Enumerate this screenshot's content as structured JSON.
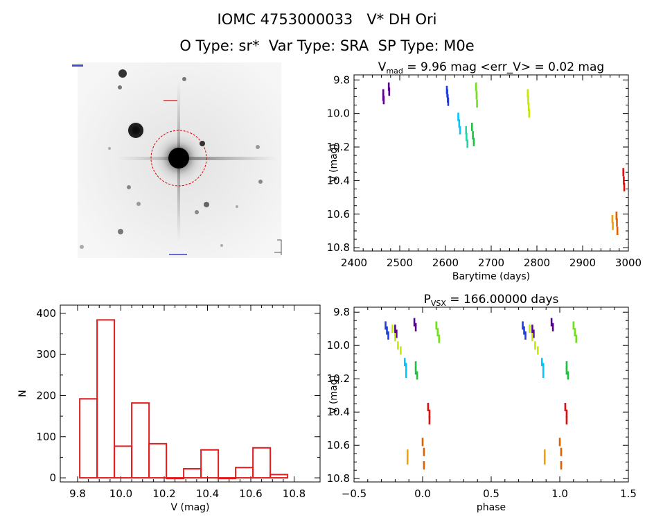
{
  "header": {
    "title_line1": "IOMC 4753000033   V* DH Ori",
    "title_line2": "O Type: sr*  Var Type: SRA  SP Type: M0e"
  },
  "colors": {
    "histogram": "#e41a1c",
    "marker_circle": "#dd0000"
  },
  "chart_data": [
    {
      "type": "scatter",
      "panel": "lightcurve",
      "title_prefix": "V",
      "title_sub": "mad",
      "title_suffix": " = 9.96 mag <err_V> = 0.02 mag",
      "xlabel": "Barytime (days)",
      "ylabel": "V (mag)",
      "xlim": [
        2400,
        3000
      ],
      "ylim": [
        10.82,
        9.77
      ],
      "xticks": [
        2400,
        2500,
        2600,
        2700,
        2800,
        2900,
        3000
      ],
      "yticks": [
        9.8,
        10.0,
        10.2,
        10.4,
        10.6,
        10.8
      ],
      "ytick_labels": [
        "9.8",
        "10.0",
        "10.2",
        "10.4",
        "10.6",
        "10.8"
      ],
      "series": [
        {
          "color": "#5a0090",
          "x": [
            2464,
            2464,
            2465,
            2476,
            2477
          ],
          "y": [
            9.88,
            9.9,
            9.92,
            9.84,
            9.87
          ]
        },
        {
          "color": "#1e3ce0",
          "x": [
            2603,
            2604,
            2605,
            2606
          ],
          "y": [
            9.86,
            9.88,
            9.91,
            9.93
          ]
        },
        {
          "color": "#00c8ff",
          "x": [
            2628,
            2630,
            2632
          ],
          "y": [
            10.02,
            10.06,
            10.1
          ]
        },
        {
          "color": "#20d8a0",
          "x": [
            2645,
            2646,
            2648
          ],
          "y": [
            10.1,
            10.14,
            10.18
          ]
        },
        {
          "color": "#20c040",
          "x": [
            2658,
            2660,
            2662
          ],
          "y": [
            10.08,
            10.13,
            10.17
          ]
        },
        {
          "color": "#70e020",
          "x": [
            2667,
            2668,
            2669
          ],
          "y": [
            9.84,
            9.89,
            9.94
          ]
        },
        {
          "color": "#c8e800",
          "x": [
            2780,
            2781,
            2782,
            2783
          ],
          "y": [
            9.88,
            9.92,
            9.96,
            10.0
          ]
        },
        {
          "color": "#f0a000",
          "x": [
            2965,
            2966
          ],
          "y": [
            10.63,
            10.67
          ]
        },
        {
          "color": "#e06000",
          "x": [
            2974,
            2975,
            2976
          ],
          "y": [
            10.61,
            10.65,
            10.7
          ]
        },
        {
          "color": "#dd1010",
          "x": [
            2989,
            2990,
            2991
          ],
          "y": [
            10.35,
            10.4,
            10.44
          ]
        }
      ]
    },
    {
      "type": "bar",
      "panel": "histogram",
      "xlabel": "V (mag)",
      "ylabel": "N",
      "xlim": [
        9.72,
        10.92
      ],
      "ylim": [
        -10,
        420
      ],
      "xticks": [
        9.8,
        10.0,
        10.2,
        10.4,
        10.6,
        10.8
      ],
      "xtick_labels": [
        "9.8",
        "10.0",
        "10.2",
        "10.4",
        "10.6",
        "10.8"
      ],
      "yticks": [
        0,
        100,
        200,
        300,
        400
      ],
      "bin_edges": [
        9.81,
        9.89,
        9.97,
        10.05,
        10.13,
        10.21,
        10.29,
        10.37,
        10.45,
        10.53,
        10.61,
        10.69,
        10.77
      ],
      "values": [
        192,
        384,
        77,
        182,
        83,
        0,
        22,
        68,
        0,
        25,
        73,
        8
      ]
    },
    {
      "type": "scatter",
      "panel": "phase",
      "title_prefix": "P",
      "title_sub": "VSX",
      "title_suffix": " = 166.00000 days",
      "xlabel": "phase",
      "ylabel": "V (mag)",
      "xlim": [
        -0.5,
        1.5
      ],
      "ylim": [
        10.82,
        9.77
      ],
      "xticks": [
        -0.5,
        0.0,
        0.5,
        1.0,
        1.5
      ],
      "xtick_labels": [
        "−0.5",
        "0.0",
        "0.5",
        "1.0",
        "1.5"
      ],
      "yticks": [
        9.8,
        10.0,
        10.2,
        10.4,
        10.6,
        10.8
      ],
      "ytick_labels": [
        "9.8",
        "10.0",
        "10.2",
        "10.4",
        "10.6",
        "10.8"
      ],
      "series": [
        {
          "color": "#1e3ce0",
          "x": [
            -0.27,
            -0.26,
            -0.25
          ],
          "y": [
            9.88,
            9.91,
            9.94
          ]
        },
        {
          "color": "#5a0090",
          "x": [
            -0.2,
            -0.19,
            -0.06,
            -0.05
          ],
          "y": [
            9.9,
            9.93,
            9.86,
            9.89
          ]
        },
        {
          "color": "#c8e800",
          "x": [
            -0.22,
            -0.2,
            -0.18,
            -0.16
          ],
          "y": [
            9.9,
            9.95,
            10.0,
            10.03
          ]
        },
        {
          "color": "#00c8ff",
          "x": [
            -0.13,
            -0.12,
            -0.12
          ],
          "y": [
            10.1,
            10.13,
            10.17
          ]
        },
        {
          "color": "#20c040",
          "x": [
            -0.05,
            -0.05,
            -0.04
          ],
          "y": [
            10.12,
            10.15,
            10.18
          ]
        },
        {
          "color": "#70e020",
          "x": [
            0.1,
            0.11,
            0.12
          ],
          "y": [
            9.88,
            9.92,
            9.96
          ]
        },
        {
          "color": "#f0a000",
          "x": [
            -0.11,
            -0.11
          ],
          "y": [
            10.65,
            10.69
          ]
        },
        {
          "color": "#e06000",
          "x": [
            0.0,
            0.01,
            0.01
          ],
          "y": [
            10.58,
            10.64,
            10.72
          ]
        },
        {
          "color": "#dd1010",
          "x": [
            0.04,
            0.05,
            0.05
          ],
          "y": [
            10.37,
            10.41,
            10.45
          ]
        },
        {
          "color": "#1e3ce0",
          "x": [
            0.73,
            0.74,
            0.75
          ],
          "y": [
            9.88,
            9.91,
            9.94
          ]
        },
        {
          "color": "#5a0090",
          "x": [
            0.8,
            0.81,
            0.94,
            0.95
          ],
          "y": [
            9.9,
            9.93,
            9.86,
            9.89
          ]
        },
        {
          "color": "#c8e800",
          "x": [
            0.78,
            0.8,
            0.82,
            0.84
          ],
          "y": [
            9.9,
            9.95,
            10.0,
            10.03
          ]
        },
        {
          "color": "#00c8ff",
          "x": [
            0.87,
            0.88,
            0.88
          ],
          "y": [
            10.1,
            10.13,
            10.17
          ]
        },
        {
          "color": "#20c040",
          "x": [
            1.05,
            1.05,
            1.06
          ],
          "y": [
            10.12,
            10.15,
            10.18
          ]
        },
        {
          "color": "#70e020",
          "x": [
            1.1,
            1.11,
            1.12
          ],
          "y": [
            9.88,
            9.92,
            9.96
          ]
        },
        {
          "color": "#f0a000",
          "x": [
            0.89,
            0.89
          ],
          "y": [
            10.65,
            10.69
          ]
        },
        {
          "color": "#e06000",
          "x": [
            1.0,
            1.01,
            1.01
          ],
          "y": [
            10.58,
            10.64,
            10.72
          ]
        },
        {
          "color": "#dd1010",
          "x": [
            1.04,
            1.05,
            1.05
          ],
          "y": [
            10.37,
            10.41,
            10.45
          ]
        }
      ]
    }
  ]
}
